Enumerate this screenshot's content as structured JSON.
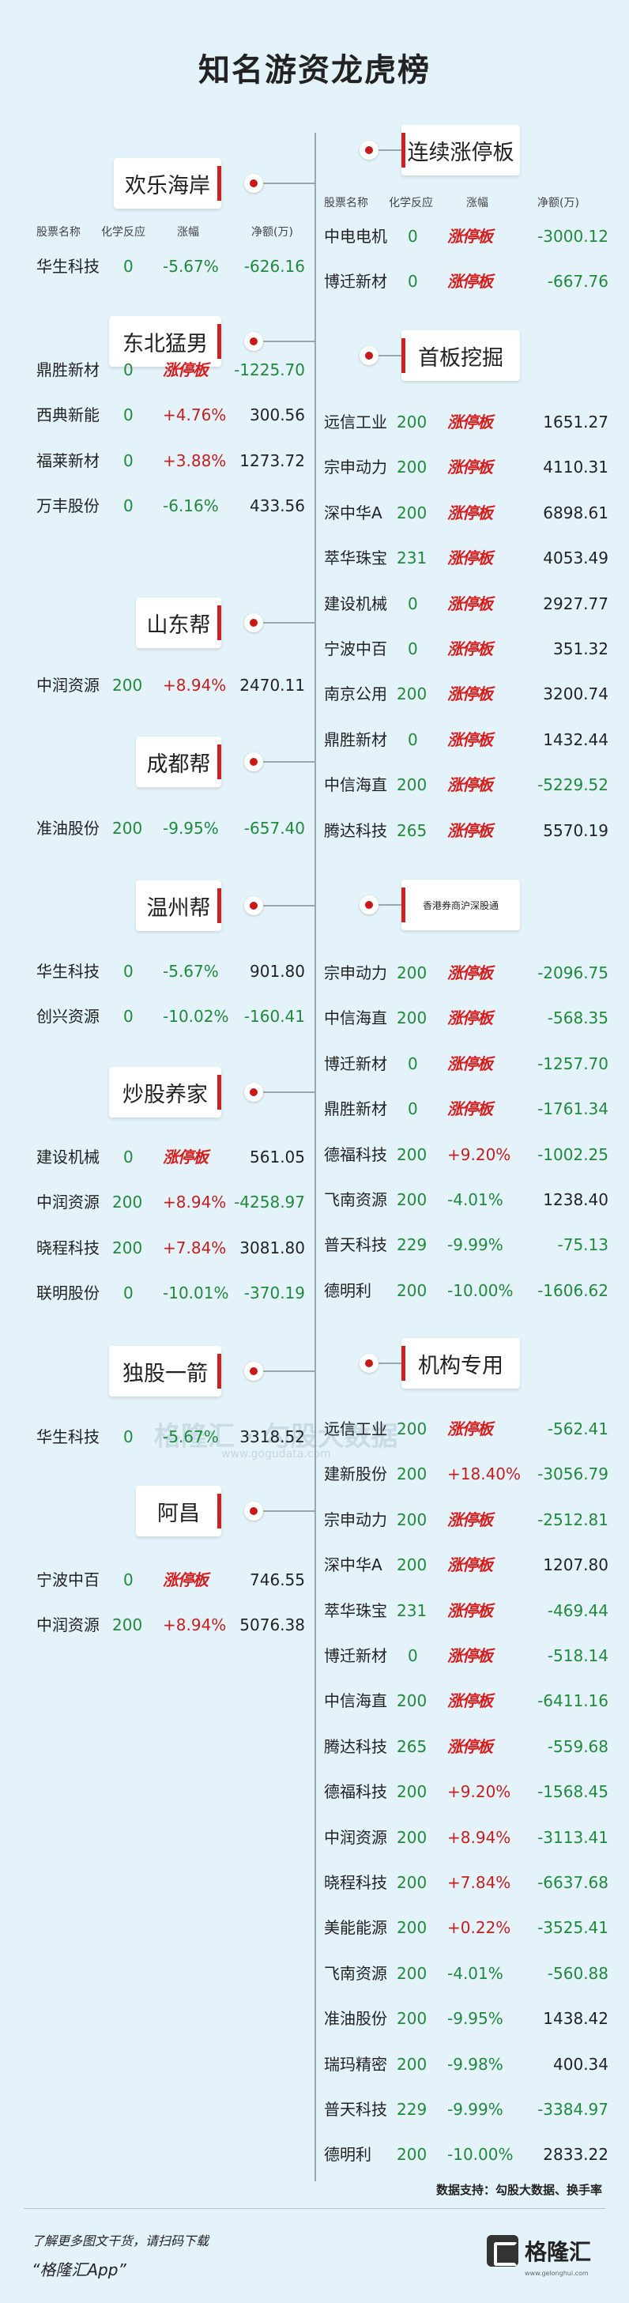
{
  "title": "知名游资龙虎榜",
  "header": {
    "name": "股票名称",
    "reason": "化学反应",
    "change": "涨幅",
    "net": "净额(万)"
  },
  "left_sections": [
    {
      "name": "欢乐海岸",
      "rows": [
        [
          "华生科技",
          "0",
          "-5.67%",
          "-626.16"
        ]
      ]
    },
    {
      "name": "东北猛男",
      "rows": [
        [
          "鼎胜新材",
          "0",
          "涨停板",
          "-1225.70"
        ],
        [
          "西典新能",
          "0",
          "+4.76%",
          "300.56"
        ],
        [
          "福莱新材",
          "0",
          "+3.88%",
          "1273.72"
        ],
        [
          "万丰股份",
          "0",
          "-6.16%",
          "433.56"
        ]
      ]
    },
    {
      "name": "山东帮",
      "rows": [
        [
          "中润资源",
          "200",
          "+8.94%",
          "2470.11"
        ]
      ]
    },
    {
      "name": "成都帮",
      "rows": [
        [
          "准油股份",
          "200",
          "-9.95%",
          "-657.40"
        ]
      ]
    },
    {
      "name": "温州帮",
      "rows": [
        [
          "华生科技",
          "0",
          "-5.67%",
          "901.80"
        ],
        [
          "创兴资源",
          "0",
          "-10.02%",
          "-160.41"
        ]
      ]
    },
    {
      "name": "炒股养家",
      "rows": [
        [
          "建设机械",
          "0",
          "涨停板",
          "561.05"
        ],
        [
          "中润资源",
          "200",
          "+8.94%",
          "-4258.97"
        ],
        [
          "晓程科技",
          "200",
          "+7.84%",
          "3081.80"
        ],
        [
          "联明股份",
          "0",
          "-10.01%",
          "-370.19"
        ]
      ]
    },
    {
      "name": "独股一箭",
      "rows": [
        [
          "华生科技",
          "0",
          "-5.67%",
          "3318.52"
        ]
      ]
    },
    {
      "name": "阿昌",
      "rows": [
        [
          "宁波中百",
          "0",
          "涨停板",
          "746.55"
        ],
        [
          "中润资源",
          "200",
          "+8.94%",
          "5076.38"
        ]
      ]
    }
  ],
  "right_sections": [
    {
      "name": "连续涨停板",
      "rows": [
        [
          "中电电机",
          "0",
          "涨停板",
          "-3000.12"
        ],
        [
          "博迁新材",
          "0",
          "涨停板",
          "-667.76"
        ]
      ]
    },
    {
      "name": "首板挖掘",
      "rows": [
        [
          "远信工业",
          "200",
          "涨停板",
          "1651.27"
        ],
        [
          "宗申动力",
          "200",
          "涨停板",
          "4110.31"
        ],
        [
          "深中华A",
          "200",
          "涨停板",
          "6898.61"
        ],
        [
          "萃华珠宝",
          "231",
          "涨停板",
          "4053.49"
        ],
        [
          "建设机械",
          "0",
          "涨停板",
          "2927.77"
        ],
        [
          "宁波中百",
          "0",
          "涨停板",
          "351.32"
        ],
        [
          "南京公用",
          "200",
          "涨停板",
          "3200.74"
        ],
        [
          "鼎胜新材",
          "0",
          "涨停板",
          "1432.44"
        ],
        [
          "中信海直",
          "200",
          "涨停板",
          "-5229.52"
        ],
        [
          "腾达科技",
          "265",
          "涨停板",
          "5570.19"
        ]
      ]
    },
    {
      "name": "香港券商沪深股通",
      "rows": [
        [
          "宗申动力",
          "200",
          "涨停板",
          "-2096.75"
        ],
        [
          "中信海直",
          "200",
          "涨停板",
          "-568.35"
        ],
        [
          "博迁新材",
          "0",
          "涨停板",
          "-1257.70"
        ],
        [
          "鼎胜新材",
          "0",
          "涨停板",
          "-1761.34"
        ],
        [
          "德福科技",
          "200",
          "+9.20%",
          "-1002.25"
        ],
        [
          "飞南资源",
          "200",
          "-4.01%",
          "1238.40"
        ],
        [
          "普天科技",
          "229",
          "-9.99%",
          "-75.13"
        ],
        [
          "德明利",
          "200",
          "-10.00%",
          "-1606.62"
        ]
      ]
    },
    {
      "name": "机构专用",
      "rows": [
        [
          "远信工业",
          "200",
          "涨停板",
          "-562.41"
        ],
        [
          "建新股份",
          "200",
          "+18.40%",
          "-3056.79"
        ],
        [
          "宗申动力",
          "200",
          "涨停板",
          "-2512.81"
        ],
        [
          "深中华A",
          "200",
          "涨停板",
          "1207.80"
        ],
        [
          "萃华珠宝",
          "231",
          "涨停板",
          "-469.44"
        ],
        [
          "博迁新材",
          "0",
          "涨停板",
          "-518.14"
        ],
        [
          "中信海直",
          "200",
          "涨停板",
          "-6411.16"
        ],
        [
          "腾达科技",
          "265",
          "涨停板",
          "-559.68"
        ],
        [
          "德福科技",
          "200",
          "+9.20%",
          "-1568.45"
        ],
        [
          "中润资源",
          "200",
          "+8.94%",
          "-3113.41"
        ],
        [
          "晓程科技",
          "200",
          "+7.84%",
          "-6637.68"
        ],
        [
          "美能能源",
          "200",
          "+0.22%",
          "-3525.41"
        ],
        [
          "飞南资源",
          "200",
          "-4.01%",
          "-560.88"
        ],
        [
          "准油股份",
          "200",
          "-9.95%",
          "1438.42"
        ],
        [
          "瑞玛精密",
          "200",
          "-9.98%",
          "400.34"
        ],
        [
          "普天科技",
          "229",
          "-9.99%",
          "-3384.97"
        ],
        [
          "德明利",
          "200",
          "-10.00%",
          "2833.22"
        ]
      ]
    }
  ],
  "source": "数据支持：勾股大数据、换手率",
  "footer": {
    "line1": "了解更多图文干货，请扫码下载",
    "line2": "“格隆汇App”"
  },
  "logo": {
    "text": "格隆汇",
    "url": "www.gelonghui.com"
  },
  "watermark": {
    "text": "格隆汇 · 勾股大数据",
    "url": "www.gogudata.com"
  },
  "colors": {
    "background": "#e4f3fa",
    "limit_up": "#d81d1d",
    "reason": "#208a3a",
    "accent": "#cf2020"
  }
}
